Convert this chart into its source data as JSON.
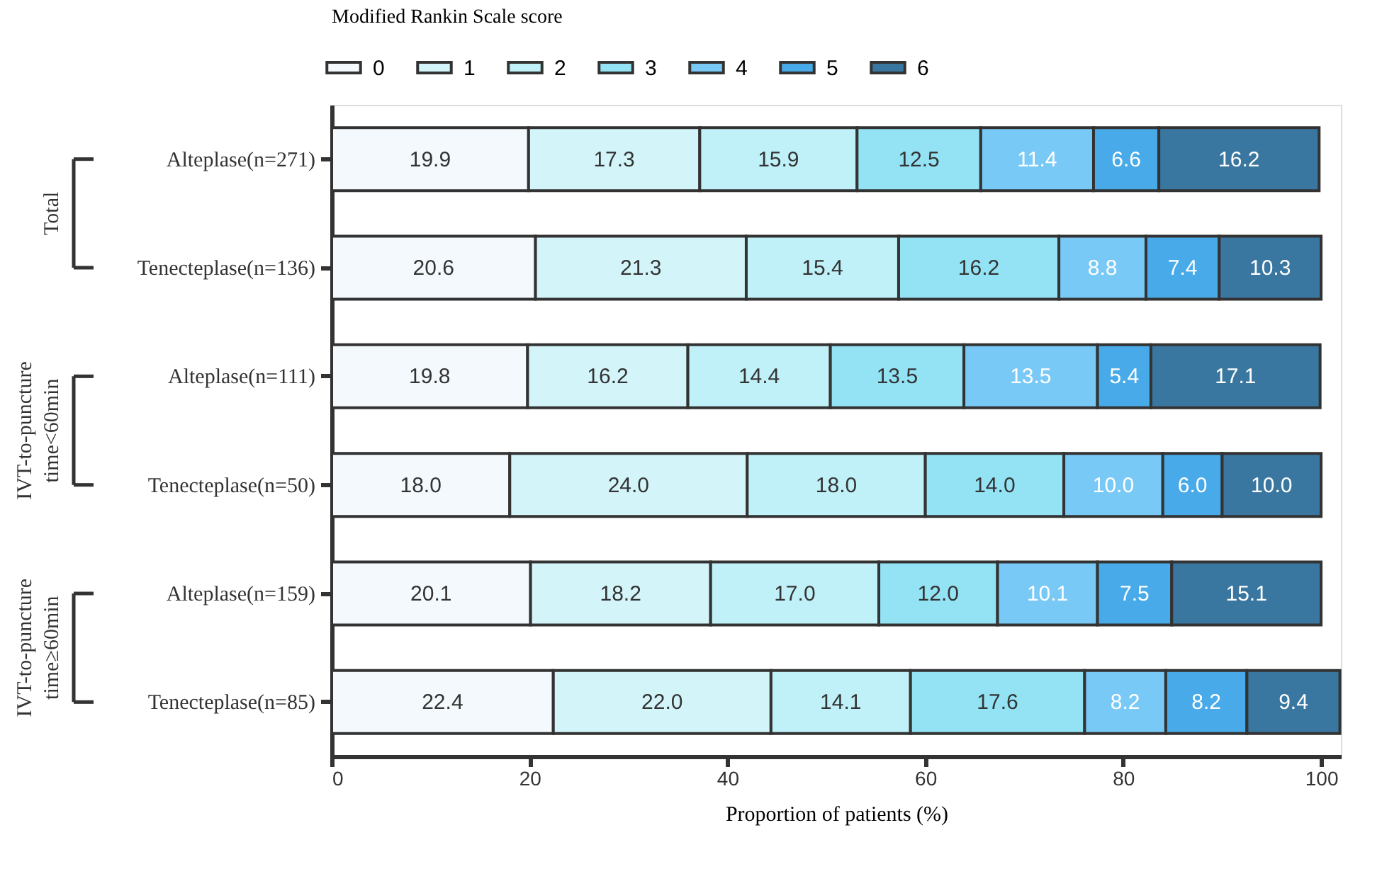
{
  "chart_data": {
    "type": "bar",
    "orientation": "horizontal",
    "stacked": true,
    "legend": "top",
    "legend_title": "Modified Rankin Scale score",
    "xlabel": "Proportion of patients (%)",
    "xlim": [
      0,
      102
    ],
    "xticks": [
      0,
      20,
      40,
      60,
      80,
      100
    ],
    "grid": false,
    "categories": [
      "Alteplase(n=271)",
      "Tenecteplase(n=136)",
      "Alteplase(n=111)",
      "Tenecteplase(n=50)",
      "Alteplase(n=159)",
      "Tenecteplase(n=85)"
    ],
    "annotations": [
      "Total",
      "IVT-to-puncture time<60min",
      "IVT-to-puncture time≥60min"
    ],
    "series": [
      {
        "name": "0",
        "color": "#f3f9fc",
        "values": [
          19.9,
          20.6,
          19.8,
          18.0,
          20.1,
          22.4
        ],
        "value_labels": [
          "19.9",
          "20.6",
          "19.8",
          "18.0",
          "20.1",
          "22.4"
        ]
      },
      {
        "name": "1",
        "color": "#d3f5fa",
        "values": [
          17.3,
          21.3,
          16.2,
          24.0,
          18.2,
          22.0
        ],
        "value_labels": [
          "17.3",
          "21.3",
          "16.2",
          "24.0",
          "18.2",
          "22.0"
        ]
      },
      {
        "name": "2",
        "color": "#c0f1f8",
        "values": [
          15.9,
          15.4,
          14.4,
          18.0,
          17.0,
          14.1
        ],
        "value_labels": [
          "15.9",
          "15.4",
          "14.4",
          "18.0",
          "17.0",
          "14.1"
        ]
      },
      {
        "name": "3",
        "color": "#93e3f5",
        "values": [
          12.5,
          16.2,
          13.5,
          14.0,
          12.0,
          17.6
        ],
        "value_labels": [
          "12.5",
          "16.2",
          "13.5",
          "14.0",
          "12.0",
          "17.6"
        ]
      },
      {
        "name": "4",
        "color": "#79c9f7",
        "values": [
          11.4,
          8.8,
          13.5,
          10.0,
          10.1,
          8.2
        ],
        "value_labels": [
          "11.4",
          "8.8",
          "13.5",
          "10.0",
          "10.1",
          "8.2"
        ]
      },
      {
        "name": "5",
        "color": "#48aae8",
        "values": [
          6.6,
          7.4,
          5.4,
          6.0,
          7.5,
          8.2
        ],
        "value_labels": [
          "6.6",
          "7.4",
          "5.4",
          "6.0",
          "7.5",
          "8.2"
        ]
      },
      {
        "name": "6",
        "color": "#3a77a0",
        "values": [
          16.2,
          10.3,
          17.1,
          10.0,
          15.1,
          9.4
        ],
        "value_labels": [
          "16.2",
          "10.3",
          "17.1",
          "10.0",
          "15.1",
          "9.4"
        ]
      }
    ]
  }
}
